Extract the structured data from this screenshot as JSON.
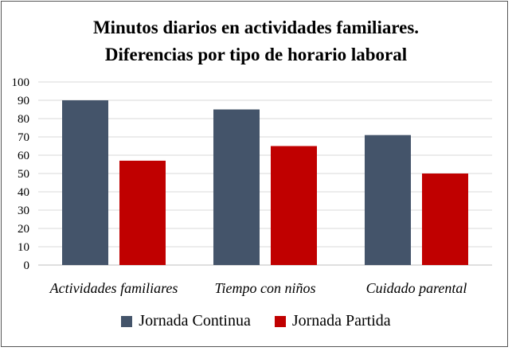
{
  "chart_data": {
    "type": "bar",
    "title_lines": [
      "Minutos diarios  en actividades  familiares.",
      "Diferencias por tipo de horario laboral"
    ],
    "categories": [
      "Actividades familiares",
      "Tiempo con niños",
      "Cuidado parental"
    ],
    "series": [
      {
        "name": "Jornada Continua",
        "color": "#44546A",
        "values": [
          90,
          85,
          71
        ]
      },
      {
        "name": "Jornada Partida",
        "color": "#C00000",
        "values": [
          57,
          65,
          50
        ]
      }
    ],
    "ylim": [
      0,
      100
    ],
    "yticks": [
      0,
      10,
      20,
      30,
      40,
      50,
      60,
      70,
      80,
      90,
      100
    ],
    "grid": true,
    "legend_position": "bottom",
    "xlabel": "",
    "ylabel": ""
  }
}
